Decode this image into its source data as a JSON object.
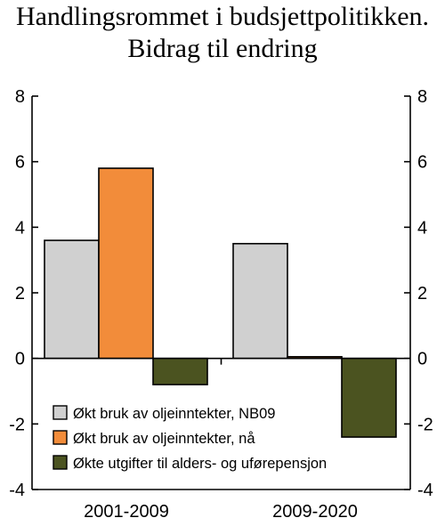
{
  "chart_data": {
    "type": "bar",
    "title_lines": [
      "Handlingsrommet i budsjettpolitikken.",
      "Bidrag til endring"
    ],
    "categories": [
      "2001-2009",
      "2009-2020"
    ],
    "series": [
      {
        "name": "Økt bruk av oljeinntekter, NB09",
        "color": "#d0d0d0",
        "values": [
          3.6,
          3.5
        ]
      },
      {
        "name": "Økt bruk av oljeinntekter, nå",
        "color": "#f28c3a",
        "values": [
          5.8,
          0.05
        ]
      },
      {
        "name": "Økte utgifter til alders- og uførepensjon",
        "color": "#4b5320",
        "values": [
          -0.8,
          -2.4
        ]
      }
    ],
    "ylim": [
      -4,
      8
    ],
    "yticks": [
      -4,
      -2,
      0,
      2,
      4,
      6,
      8
    ],
    "grid": false,
    "legend_position": "bottom-left",
    "xlabel": "",
    "ylabel": ""
  }
}
